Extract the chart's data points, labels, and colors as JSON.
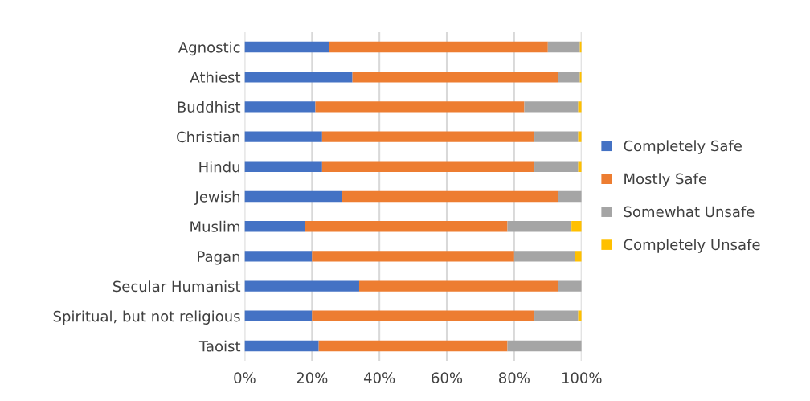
{
  "chart_data": {
    "type": "bar",
    "orientation": "horizontal",
    "stacked": true,
    "categories": [
      "Agnostic",
      "Athiest",
      "Buddhist",
      "Christian",
      "Hindu",
      "Jewish",
      "Muslim",
      "Pagan",
      "Secular Humanist",
      "Spiritual, but not religious",
      "Taoist"
    ],
    "series": [
      {
        "name": "Completely Safe",
        "color": "#4472c4",
        "values": [
          25,
          32,
          21,
          23,
          23,
          29,
          18,
          20,
          34,
          20,
          22
        ]
      },
      {
        "name": "Mostly Safe",
        "color": "#ed7d31",
        "values": [
          65,
          61,
          62,
          63,
          63,
          64,
          60,
          60,
          59,
          66,
          56
        ]
      },
      {
        "name": "Somewhat Unsafe",
        "color": "#a5a5a5",
        "values": [
          9.5,
          6.5,
          16,
          13,
          13,
          7,
          19,
          18,
          7,
          13,
          22
        ]
      },
      {
        "name": "Completely Unsafe",
        "color": "#ffc000",
        "values": [
          0.5,
          0.5,
          1,
          1,
          1,
          0,
          3,
          2,
          0,
          1,
          0
        ]
      }
    ],
    "xlim": [
      0,
      100
    ],
    "xticks": [
      {
        "value": 0,
        "label": "0%"
      },
      {
        "value": 20,
        "label": "20%"
      },
      {
        "value": 40,
        "label": "40%"
      },
      {
        "value": 60,
        "label": "60%"
      },
      {
        "value": 80,
        "label": "80%"
      },
      {
        "value": 100,
        "label": "100%"
      }
    ],
    "grid": "x",
    "legend": "right"
  }
}
